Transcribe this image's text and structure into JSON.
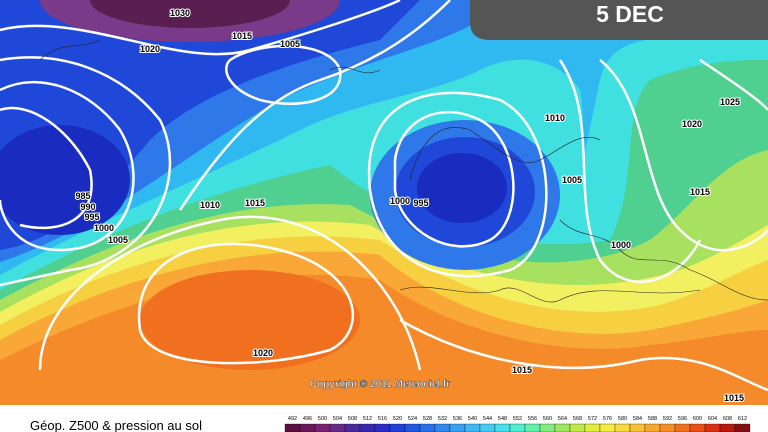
{
  "header": {
    "date": "5 DEC"
  },
  "isobar_labels": [
    "1030",
    "1020",
    "1015",
    "1005",
    "985",
    "990",
    "995",
    "1000",
    "1005",
    "1010",
    "1015",
    "1000",
    "995",
    "1010",
    "1005",
    "1000",
    "1025",
    "1020",
    "1015",
    "1020",
    "1015",
    "1015"
  ],
  "copyright": "Copyright © 2011 Meteociel.fr",
  "legend": {
    "title": "Géop. Z500 & pression au sol",
    "scale": [
      492,
      496,
      500,
      504,
      508,
      512,
      516,
      520,
      524,
      528,
      532,
      536,
      540,
      544,
      548,
      552,
      556,
      560,
      564,
      568,
      572,
      576,
      580,
      584,
      588,
      592,
      596,
      600,
      604,
      608,
      612
    ]
  }
}
